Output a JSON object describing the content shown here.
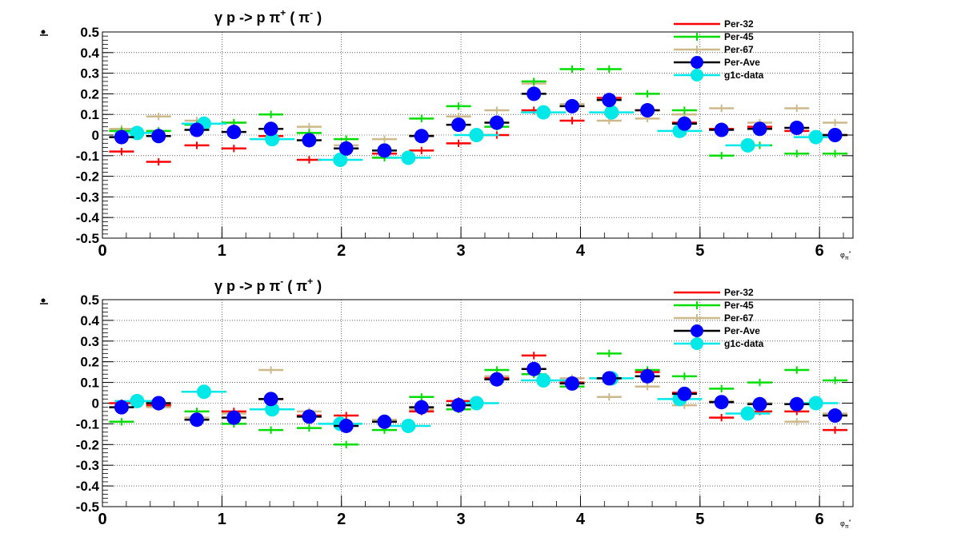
{
  "colors": {
    "Per-32": "#ff0000",
    "Per-45": "#00dd00",
    "Per-67": "#cdb98a",
    "Per-Ave": "#000000",
    "Per-Ave-marker": "#0000ff",
    "g1c-data": "#00e8e8"
  },
  "chart_data": [
    {
      "type": "scatter",
      "title_main": "γ p -> p π",
      "title_sup": "+",
      "title_paren": "( π",
      "title_paren_sup": "-",
      "title_close": ")",
      "xlabel": "φ",
      "xlabel_sub": "π",
      "xlabel_sup": "*",
      "xlim": [
        0,
        6.28
      ],
      "ylim": [
        -0.5,
        0.5
      ],
      "xticks": [
        "0",
        "1",
        "2",
        "3",
        "4",
        "5",
        "6"
      ],
      "yticks": [
        "-0.5",
        "-0.4",
        "-0.3",
        "-0.2",
        "-0.1",
        "0",
        "0.1",
        "0.2",
        "0.3",
        "0.4",
        "0.5"
      ],
      "grid": true,
      "legend": [
        "Per-32",
        "Per-45",
        "Per-67",
        "Per-Ave",
        "g1c-data"
      ],
      "series": [
        {
          "name": "Per-32",
          "x": [
            0.16,
            0.47,
            0.79,
            1.1,
            1.41,
            1.73,
            2.04,
            2.36,
            2.67,
            2.98,
            3.3,
            3.61,
            3.93,
            4.24,
            4.56,
            4.87,
            5.18,
            5.5,
            5.81,
            6.13
          ],
          "y": [
            -0.08,
            -0.13,
            -0.05,
            -0.065,
            -0.005,
            -0.12,
            -0.065,
            -0.09,
            -0.075,
            -0.04,
            0.0,
            0.12,
            0.07,
            0.18,
            0.12,
            0.06,
            0.03,
            0.04,
            0.02,
            0.0
          ]
        },
        {
          "name": "Per-45",
          "x": [
            0.16,
            0.47,
            0.79,
            1.1,
            1.41,
            1.73,
            2.04,
            2.36,
            2.67,
            2.98,
            3.3,
            3.61,
            3.93,
            4.24,
            4.56,
            4.87,
            5.18,
            5.5,
            5.81,
            6.13
          ],
          "y": [
            0.02,
            0.02,
            0.05,
            0.06,
            0.1,
            0.01,
            -0.02,
            -0.11,
            0.08,
            0.14,
            0.04,
            0.26,
            0.32,
            0.32,
            0.2,
            0.12,
            -0.1,
            -0.05,
            -0.09,
            -0.09
          ]
        },
        {
          "name": "Per-67",
          "x": [
            0.16,
            0.47,
            0.79,
            1.1,
            1.41,
            1.73,
            2.04,
            2.36,
            2.67,
            2.98,
            3.3,
            3.61,
            3.93,
            4.24,
            4.56,
            4.87,
            5.18,
            5.5,
            5.81,
            6.13
          ],
          "y": [
            0.03,
            0.09,
            0.07,
            0.06,
            0.03,
            0.04,
            -0.05,
            -0.02,
            0.0,
            0.09,
            0.12,
            0.25,
            0.15,
            0.07,
            0.08,
            0.1,
            0.13,
            0.06,
            0.13,
            0.06
          ]
        },
        {
          "name": "Per-Ave",
          "x": [
            0.16,
            0.47,
            0.79,
            1.1,
            1.41,
            1.73,
            2.04,
            2.36,
            2.67,
            2.98,
            3.3,
            3.61,
            3.93,
            4.24,
            4.56,
            4.87,
            5.18,
            5.5,
            5.81,
            6.13
          ],
          "y": [
            -0.01,
            -0.005,
            0.025,
            0.015,
            0.03,
            -0.025,
            -0.065,
            -0.075,
            -0.005,
            0.05,
            0.06,
            0.2,
            0.14,
            0.17,
            0.12,
            0.055,
            0.025,
            0.03,
            0.035,
            0.0
          ]
        },
        {
          "name": "g1c-data",
          "x": [
            0.29,
            0.85,
            1.42,
            1.99,
            2.56,
            3.13,
            3.69,
            4.26,
            4.83,
            5.4,
            5.97
          ],
          "y": [
            0.01,
            0.055,
            -0.02,
            -0.12,
            -0.11,
            0.0,
            0.11,
            0.11,
            0.02,
            -0.05,
            -0.01
          ]
        }
      ]
    },
    {
      "type": "scatter",
      "title_main": "γ p -> p π",
      "title_sup": "-",
      "title_paren": "( π",
      "title_paren_sup": "+",
      "title_close": ")",
      "xlabel": "φ",
      "xlabel_sub": "π",
      "xlabel_sup": "*",
      "xlim": [
        0,
        6.28
      ],
      "ylim": [
        -0.5,
        0.5
      ],
      "xticks": [
        "0",
        "1",
        "2",
        "3",
        "4",
        "5",
        "6"
      ],
      "yticks": [
        "-0.5",
        "-0.4",
        "-0.3",
        "-0.2",
        "-0.1",
        "0",
        "0.1",
        "0.2",
        "0.3",
        "0.4",
        "0.5"
      ],
      "grid": true,
      "legend": [
        "Per-32",
        "Per-45",
        "Per-67",
        "Per-Ave",
        "g1c-data"
      ],
      "series": [
        {
          "name": "Per-32",
          "x": [
            0.16,
            0.47,
            0.79,
            1.1,
            1.41,
            1.73,
            2.04,
            2.36,
            2.67,
            2.98,
            3.3,
            3.61,
            3.93,
            4.24,
            4.56,
            4.87,
            5.18,
            5.5,
            5.81,
            6.13
          ],
          "y": [
            0.0,
            -0.01,
            -0.08,
            -0.04,
            0.02,
            -0.06,
            -0.06,
            -0.09,
            -0.04,
            0.01,
            0.12,
            0.23,
            0.1,
            0.12,
            0.15,
            0.05,
            -0.07,
            -0.04,
            -0.04,
            -0.13
          ]
        },
        {
          "name": "Per-45",
          "x": [
            0.16,
            0.47,
            0.79,
            1.1,
            1.41,
            1.73,
            2.04,
            2.36,
            2.67,
            2.98,
            3.3,
            3.61,
            3.93,
            4.24,
            4.56,
            4.87,
            5.18,
            5.5,
            5.81,
            6.13
          ],
          "y": [
            -0.09,
            -0.01,
            -0.04,
            -0.1,
            -0.13,
            -0.12,
            -0.2,
            -0.13,
            0.03,
            -0.03,
            0.16,
            0.14,
            0.08,
            0.24,
            0.16,
            0.13,
            0.07,
            0.1,
            0.16,
            0.11
          ]
        },
        {
          "name": "Per-67",
          "x": [
            0.16,
            0.47,
            0.79,
            1.1,
            1.41,
            1.73,
            2.04,
            2.36,
            2.67,
            2.98,
            3.3,
            3.61,
            3.93,
            4.24,
            4.56,
            4.87,
            5.18,
            5.5,
            5.81,
            6.13
          ],
          "y": [
            -0.02,
            -0.02,
            -0.07,
            -0.05,
            0.16,
            -0.04,
            -0.1,
            -0.08,
            -0.03,
            -0.01,
            0.13,
            0.14,
            0.12,
            0.03,
            0.08,
            -0.01,
            0.01,
            0.0,
            -0.09,
            -0.05
          ]
        },
        {
          "name": "Per-Ave",
          "x": [
            0.16,
            0.47,
            0.79,
            1.1,
            1.41,
            1.73,
            2.04,
            2.36,
            2.67,
            2.98,
            3.3,
            3.61,
            3.93,
            4.24,
            4.56,
            4.87,
            5.18,
            5.5,
            5.81,
            6.13
          ],
          "y": [
            -0.02,
            0.0,
            -0.08,
            -0.07,
            0.02,
            -0.065,
            -0.11,
            -0.09,
            -0.02,
            -0.01,
            0.115,
            0.165,
            0.095,
            0.12,
            0.13,
            0.045,
            0.005,
            -0.005,
            -0.005,
            -0.06
          ]
        },
        {
          "name": "g1c-data",
          "x": [
            0.29,
            0.85,
            1.42,
            1.99,
            2.56,
            3.13,
            3.69,
            4.26,
            4.83,
            5.4,
            5.97
          ],
          "y": [
            0.01,
            0.055,
            -0.03,
            -0.1,
            -0.11,
            0.0,
            0.11,
            0.12,
            0.02,
            -0.05,
            0.0
          ]
        }
      ]
    }
  ]
}
